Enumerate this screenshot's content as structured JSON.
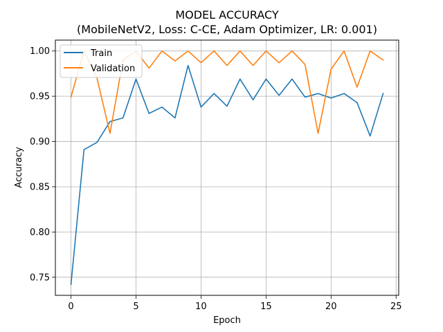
{
  "chart_data": {
    "type": "line",
    "title": "MODEL ACCURACY",
    "subtitle": "(MobileNetV2, Loss: C-CE, Adam Optimizer, LR: 0.001)",
    "xlabel": "Epoch",
    "ylabel": "Accuracy",
    "xlim": [
      -1.2,
      25.2
    ],
    "ylim": [
      0.73,
      1.012
    ],
    "x_ticks": [
      0,
      5,
      10,
      15,
      20,
      25
    ],
    "y_ticks": [
      0.75,
      0.8,
      0.85,
      0.9,
      0.95,
      1.0
    ],
    "x_tick_labels": [
      "0",
      "5",
      "10",
      "15",
      "20",
      "25"
    ],
    "y_tick_labels": [
      "0.75",
      "0.80",
      "0.85",
      "0.90",
      "0.95",
      "1.00"
    ],
    "grid": true,
    "legend_position": "upper-left",
    "x": [
      0,
      1,
      2,
      3,
      4,
      5,
      6,
      7,
      8,
      9,
      10,
      11,
      12,
      13,
      14,
      15,
      16,
      17,
      18,
      19,
      20,
      21,
      22,
      23,
      24
    ],
    "series": [
      {
        "name": "Train",
        "color": "#1f77b4",
        "values": [
          0.742,
          0.891,
          0.899,
          0.922,
          0.926,
          0.969,
          0.931,
          0.938,
          0.926,
          0.984,
          0.938,
          0.953,
          0.939,
          0.969,
          0.946,
          0.969,
          0.951,
          0.969,
          0.949,
          0.953,
          0.948,
          0.953,
          0.943,
          0.906,
          0.953
        ]
      },
      {
        "name": "Validation",
        "color": "#ff7f0e",
        "values": [
          0.949,
          1.0,
          0.97,
          0.909,
          0.99,
          1.0,
          0.981,
          1.0,
          0.989,
          1.0,
          0.987,
          1.0,
          0.984,
          1.0,
          0.984,
          1.0,
          0.987,
          1.0,
          0.985,
          0.909,
          0.98,
          1.0,
          0.96,
          1.0,
          0.99
        ]
      }
    ]
  }
}
